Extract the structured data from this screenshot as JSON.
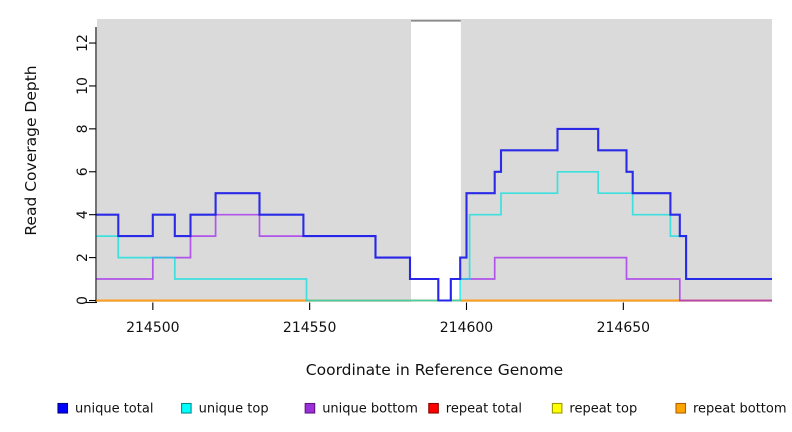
{
  "chart_data": {
    "type": "line",
    "subtype": "step-coverage",
    "title": "",
    "xlabel": "Coordinate in Reference Genome",
    "ylabel": "Read Coverage Depth",
    "x_ticks": [
      214500,
      214550,
      214600,
      214650
    ],
    "y_ticks": [
      0,
      2,
      4,
      6,
      8,
      10,
      12
    ],
    "xlim": [
      214482.2,
      214697.4
    ],
    "ylim": [
      -0.07,
      13.12
    ],
    "grid": false,
    "legend_position": "bottom",
    "colors": {
      "plot_bg": "#DADADA",
      "page_bg": "#FFFFFF",
      "axis": "#000000",
      "tick_labels": "#1A1A1A",
      "band_fill": "#FFFFFF",
      "band_top_border": "#8C8C8C"
    },
    "gap_band": {
      "x1": 214582.3,
      "x2": 214598.2
    },
    "series": [
      {
        "name": "unique total",
        "color": "#2121E8",
        "legend_fill": "#0000FF",
        "legend_border": "#00008B",
        "width": 2.1,
        "opacity": 0.95,
        "draw_order": 6,
        "steps": [
          [
            214482,
            4
          ],
          [
            214489,
            3
          ],
          [
            214500,
            4
          ],
          [
            214507,
            3
          ],
          [
            214512,
            4
          ],
          [
            214520,
            5
          ],
          [
            214534,
            4
          ],
          [
            214548,
            3
          ],
          [
            214571,
            2
          ],
          [
            214582,
            1
          ],
          [
            214591,
            0
          ],
          [
            214595,
            1
          ],
          [
            214598,
            2
          ],
          [
            214600,
            5
          ],
          [
            214609,
            6
          ],
          [
            214611,
            7
          ],
          [
            214629,
            8
          ],
          [
            214642,
            7
          ],
          [
            214651,
            6
          ],
          [
            214653,
            5
          ],
          [
            214665,
            4
          ],
          [
            214668,
            3
          ],
          [
            214670,
            1
          ]
        ],
        "end_x": 214697.4
      },
      {
        "name": "unique top",
        "color": "#00E0E0",
        "legend_fill": "#00FFFF",
        "legend_border": "#008B8B",
        "width": 1.7,
        "opacity": 0.72,
        "draw_order": 5,
        "steps": [
          [
            214482,
            3
          ],
          [
            214489,
            2
          ],
          [
            214507,
            1
          ],
          [
            214549,
            0
          ],
          [
            214598,
            1
          ],
          [
            214601,
            4
          ],
          [
            214611,
            5
          ],
          [
            214629,
            6
          ],
          [
            214642,
            5
          ],
          [
            214653,
            4
          ],
          [
            214665,
            3
          ],
          [
            214670,
            1
          ]
        ],
        "end_x": 214697.4
      },
      {
        "name": "unique bottom",
        "color": "#A020F0",
        "legend_fill": "#9B30D9",
        "legend_border": "#5D1585",
        "width": 1.7,
        "opacity": 0.72,
        "draw_order": 4,
        "steps": [
          [
            214482,
            1
          ],
          [
            214500,
            2
          ],
          [
            214512,
            3
          ],
          [
            214520,
            4
          ],
          [
            214534,
            3
          ],
          [
            214571,
            2
          ],
          [
            214582,
            1
          ],
          [
            214591,
            0
          ],
          [
            214595,
            1
          ],
          [
            214609,
            2
          ],
          [
            214651,
            1
          ],
          [
            214668,
            0
          ]
        ],
        "end_x": 214697.4
      },
      {
        "name": "repeat total",
        "color": "#DD0000",
        "legend_fill": "#FF0000",
        "legend_border": "#8B0000",
        "width": 1.7,
        "opacity": 0.9,
        "draw_order": 1,
        "steps": [
          [
            214482,
            0
          ]
        ],
        "end_x": 214697.4
      },
      {
        "name": "repeat top",
        "color": "#FFFF00",
        "legend_fill": "#FFFF00",
        "legend_border": "#9A9A00",
        "width": 1.7,
        "opacity": 0.9,
        "draw_order": 2,
        "steps": [
          [
            214482,
            0
          ]
        ],
        "end_x": 214697.4
      },
      {
        "name": "repeat bottom",
        "color": "#FF9E1B",
        "legend_fill": "#FFA500",
        "legend_border": "#B06000",
        "width": 2.1,
        "opacity": 1.0,
        "draw_order": 3,
        "steps": [
          [
            214482,
            0
          ]
        ],
        "end_x": 214697.4
      }
    ],
    "legend": [
      {
        "label": "unique total"
      },
      {
        "label": "unique top"
      },
      {
        "label": "unique bottom"
      },
      {
        "label": "repeat total"
      },
      {
        "label": "repeat top"
      },
      {
        "label": "repeat bottom"
      }
    ]
  }
}
